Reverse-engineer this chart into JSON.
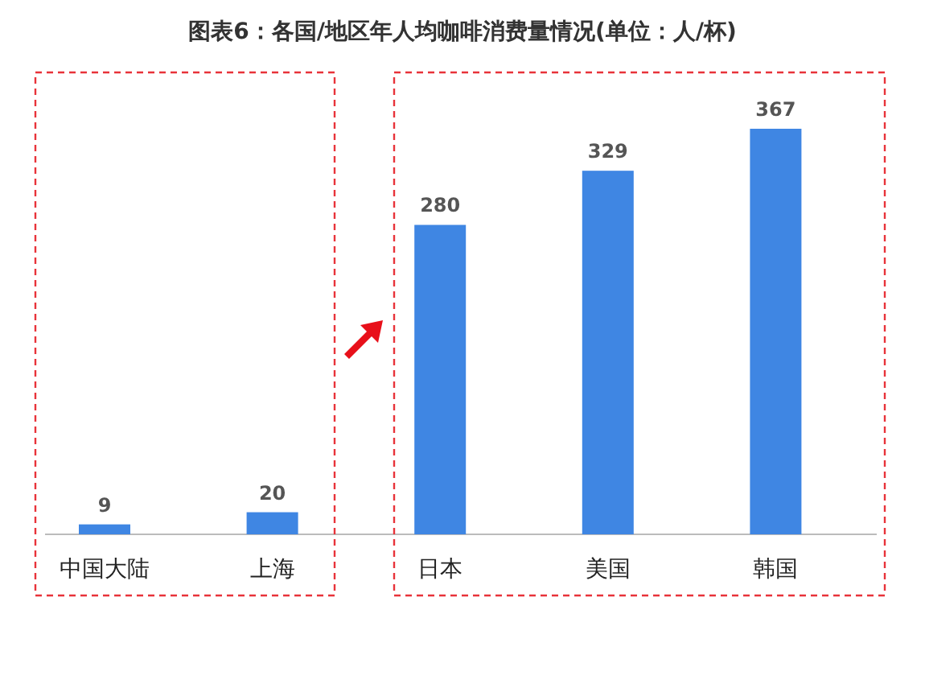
{
  "chart_data": {
    "type": "bar",
    "title": "图表6：各国/地区年人均咖啡消费量情况(单位：人/杯)",
    "categories": [
      "中国大陆",
      "上海",
      "日本",
      "美国",
      "韩国"
    ],
    "values": [
      9,
      20,
      280,
      329,
      367
    ],
    "color": "#3f86e3",
    "data_labels": true
  }
}
